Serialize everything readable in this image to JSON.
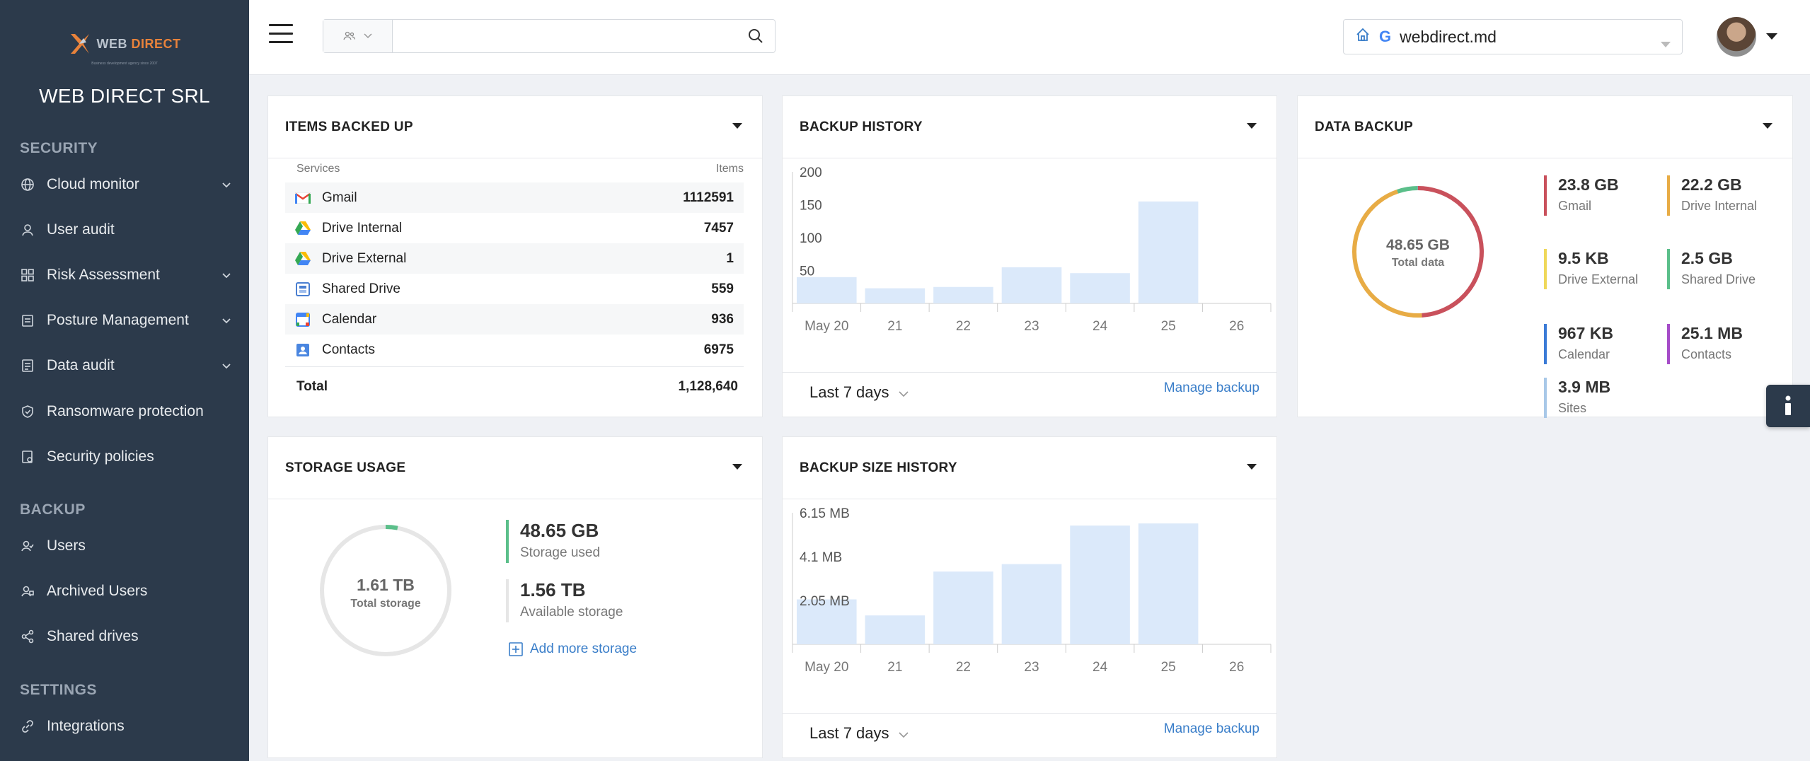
{
  "sidebar": {
    "logo_web": "WEB",
    "logo_direct": "DIRECT",
    "logo_sub": "Business development agency since 2007",
    "company": "WEB DIRECT SRL",
    "sections": [
      {
        "title": "SECURITY",
        "items": [
          {
            "label": "Cloud monitor",
            "icon": "globe-icon",
            "has_children": true
          },
          {
            "label": "User audit",
            "icon": "user-icon",
            "has_children": false
          },
          {
            "label": "Risk Assessment",
            "icon": "grid-icon",
            "has_children": true
          },
          {
            "label": "Posture Management",
            "icon": "clipboard-icon",
            "has_children": true
          },
          {
            "label": "Data audit",
            "icon": "document-icon",
            "has_children": true
          },
          {
            "label": "Ransomware protection",
            "icon": "shield-icon",
            "has_children": false
          },
          {
            "label": "Security policies",
            "icon": "policy-icon",
            "has_children": false
          }
        ]
      },
      {
        "title": "BACKUP",
        "items": [
          {
            "label": "Users",
            "icon": "users-icon"
          },
          {
            "label": "Archived Users",
            "icon": "archived-users-icon"
          },
          {
            "label": "Shared drives",
            "icon": "share-icon"
          }
        ]
      },
      {
        "title": "SETTINGS",
        "items": [
          {
            "label": "Integrations",
            "icon": "link-icon"
          }
        ]
      }
    ]
  },
  "topbar": {
    "search_placeholder": "",
    "domain": "webdirect.md",
    "domain_g": "G"
  },
  "items_backed_up": {
    "title": "ITEMS BACKED UP",
    "col_services": "Services",
    "col_items": "Items",
    "rows": [
      {
        "service": "Gmail",
        "items": "1112591",
        "icon": "gmail-icon"
      },
      {
        "service": "Drive Internal",
        "items": "7457",
        "icon": "drive-icon"
      },
      {
        "service": "Drive External",
        "items": "1",
        "icon": "drive-icon"
      },
      {
        "service": "Shared Drive",
        "items": "559",
        "icon": "shared-drive-icon"
      },
      {
        "service": "Calendar",
        "items": "936",
        "icon": "calendar-icon"
      },
      {
        "service": "Contacts",
        "items": "6975",
        "icon": "contacts-icon"
      }
    ],
    "total_label": "Total",
    "total_value": "1,128,640"
  },
  "backup_history": {
    "title": "BACKUP HISTORY",
    "period": "Last 7 days",
    "manage_label": "Manage backup"
  },
  "data_backup": {
    "title": "DATA BACKUP",
    "center_value": "48.65 GB",
    "center_label": "Total data",
    "legend": [
      {
        "value": "23.8 GB",
        "label": "Gmail",
        "color": "#c9515c"
      },
      {
        "value": "22.2 GB",
        "label": "Drive Internal",
        "color": "#e8ac45"
      },
      {
        "value": "9.5 KB",
        "label": "Drive External",
        "color": "#efd85a"
      },
      {
        "value": "2.5 GB",
        "label": "Shared Drive",
        "color": "#5bbf8a"
      },
      {
        "value": "967 KB",
        "label": "Calendar",
        "color": "#3b7bd6"
      },
      {
        "value": "25.1 MB",
        "label": "Contacts",
        "color": "#a54cc8"
      },
      {
        "value": "3.9 MB",
        "label": "Sites",
        "color": "#a8c8e8"
      }
    ]
  },
  "storage_usage": {
    "title": "STORAGE USAGE",
    "center_value": "1.61 TB",
    "center_label": "Total storage",
    "used_value": "48.65 GB",
    "used_label": "Storage used",
    "available_value": "1.56 TB",
    "available_label": "Available storage",
    "add_label": "Add more storage",
    "used_fraction": 0.03,
    "used_color": "#5bbf8a",
    "available_color": "#e6e6e6"
  },
  "backup_size_history": {
    "title": "BACKUP SIZE HISTORY",
    "period": "Last 7 days",
    "manage_label": "Manage backup"
  },
  "chart_data": [
    {
      "type": "bar",
      "title": "BACKUP HISTORY",
      "categories": [
        "May 20",
        "21",
        "22",
        "23",
        "24",
        "25",
        "26"
      ],
      "values": [
        40,
        23,
        25,
        55,
        46,
        155,
        0
      ],
      "ytick_labels": [
        "50",
        "100",
        "150",
        "200"
      ],
      "ytick_values": [
        50,
        100,
        150,
        200
      ],
      "ylim": [
        0,
        200
      ],
      "color": "#dbe9fa"
    },
    {
      "type": "bar",
      "title": "BACKUP SIZE HISTORY",
      "categories": [
        "May 20",
        "21",
        "22",
        "23",
        "24",
        "25",
        "26"
      ],
      "values": [
        2.1,
        1.35,
        3.4,
        3.75,
        5.55,
        5.65,
        0
      ],
      "ytick_labels": [
        "2.05 MB",
        "4.1 MB",
        "6.15 MB"
      ],
      "ytick_values": [
        2.05,
        4.1,
        6.15
      ],
      "ylim": [
        0,
        6.15
      ],
      "color": "#dbe9fa"
    },
    {
      "type": "pie",
      "title": "DATA BACKUP",
      "categories": [
        "Gmail",
        "Drive Internal",
        "Drive External",
        "Shared Drive",
        "Calendar",
        "Contacts",
        "Sites"
      ],
      "values": [
        23.8,
        22.2,
        9.5e-06,
        2.5,
        0.000967,
        0.0251,
        0.0039
      ],
      "unit": "GB"
    }
  ]
}
